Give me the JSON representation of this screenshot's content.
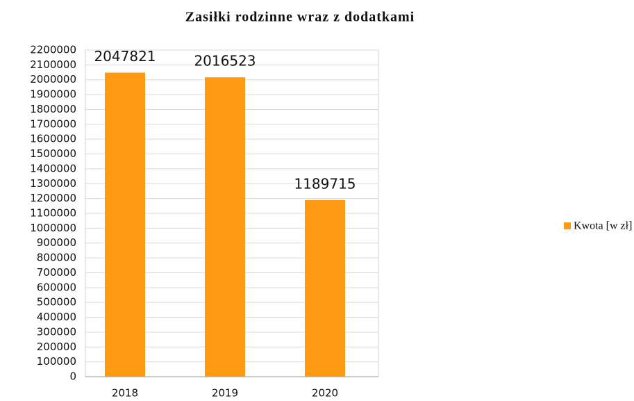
{
  "chart_data": {
    "type": "bar",
    "title": "Zasiłki rodzinne wraz z dodatkami",
    "categories": [
      "2018",
      "2019",
      "2020"
    ],
    "values": [
      2047821,
      2016523,
      1189715
    ],
    "series_name": "Kwota [w zł]",
    "color": "#ff9912",
    "ylim": [
      0,
      2200000
    ],
    "yticks": [
      0,
      100000,
      200000,
      300000,
      400000,
      500000,
      600000,
      700000,
      800000,
      900000,
      1000000,
      1100000,
      1200000,
      1300000,
      1400000,
      1500000,
      1600000,
      1700000,
      1800000,
      1900000,
      2000000,
      2100000,
      2200000
    ],
    "grid": true,
    "legend": "right"
  }
}
